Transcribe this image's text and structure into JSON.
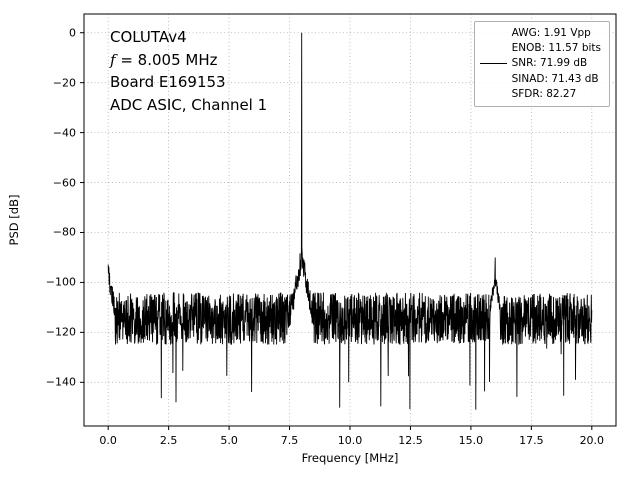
{
  "figure": {
    "annotation": {
      "line1": "COLUTAv4",
      "line2_italic": "f",
      "line2_rest": " = 8.005 MHz",
      "line3": "Board E169153",
      "line4": "ADC ASIC, Channel 1"
    },
    "legend": {
      "entries": [
        {
          "label": "AWG: 1.91 Vpp",
          "line": false
        },
        {
          "label": "ENOB: 11.57 bits",
          "line": false
        },
        {
          "label": "SNR: 71.99 dB",
          "line": true
        },
        {
          "label": "SINAD: 71.43 dB",
          "line": false
        },
        {
          "label": "SFDR: 82.27",
          "line": false
        }
      ]
    }
  },
  "chart_data": {
    "type": "line",
    "title": "",
    "xlabel": "Frequency [MHz]",
    "ylabel": "PSD [dB]",
    "xlim": [
      -1,
      21
    ],
    "ylim": [
      -157.5,
      7.5
    ],
    "xticks": [
      0.0,
      2.5,
      5.0,
      7.5,
      10.0,
      12.5,
      15.0,
      17.5,
      20.0
    ],
    "xtick_labels": [
      "0.0",
      "2.5",
      "5.0",
      "7.5",
      "10.0",
      "12.5",
      "15.0",
      "17.5",
      "20.0"
    ],
    "yticks": [
      0,
      -20,
      -40,
      -60,
      -80,
      -100,
      -120,
      -140
    ],
    "ytick_labels": [
      "0",
      "−20",
      "−40",
      "−60",
      "−80",
      "−100",
      "−120",
      "−140"
    ],
    "grid": true,
    "legend_position": "upper right",
    "series": [
      {
        "name": "SNR: 71.99 dB",
        "color": "#000000",
        "description": "PSD of 8.005 MHz sine captured by COLUTAv4 ADC; noise floor with fundamental and harmonic peaks"
      }
    ],
    "peaks": [
      {
        "name": "fundamental",
        "freq_mhz": 8.005,
        "level_db": 0
      },
      {
        "name": "second-harmonic",
        "freq_mhz": 16.0,
        "level_db": -90
      }
    ],
    "noise_floor_db": {
      "top": -104,
      "bottom": -125,
      "deep_dips_to": -150
    },
    "notable_dips": [
      {
        "freq_mhz": 2.8,
        "level_db": -148
      },
      {
        "freq_mhz": 9.95,
        "level_db": -140
      },
      {
        "freq_mhz": 15.2,
        "level_db": -151
      }
    ],
    "n_points": 2048,
    "seed": 42,
    "x_mhz_range": [
      0,
      20
    ]
  }
}
